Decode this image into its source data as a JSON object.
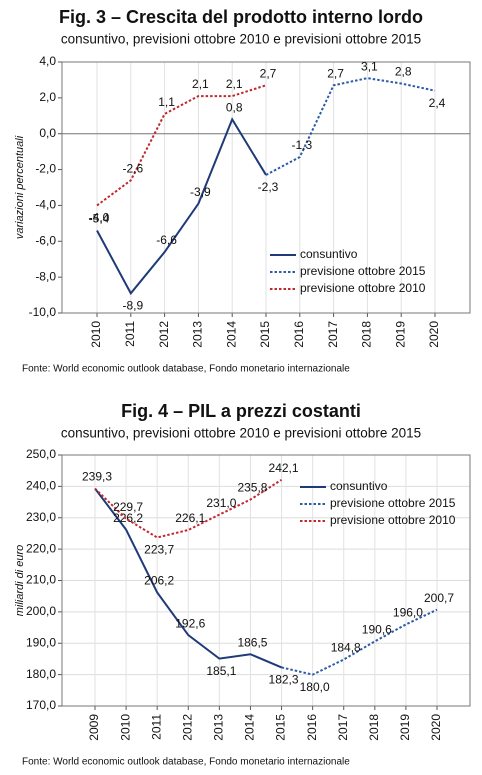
{
  "chart_data": [
    {
      "type": "line",
      "title": "Fig. 3 – Crescita del prodotto interno lordo",
      "subtitle": "consuntivo, previsioni ottobre 2010 e previsioni ottobre 2015",
      "y_label": "variazioni percentuali",
      "source": "Fonte: World economic outlook database, Fondo monetario internazionale",
      "categories": [
        "2010",
        "2011",
        "2012",
        "2013",
        "2014",
        "2015",
        "2016",
        "2017",
        "2018",
        "2019",
        "2020"
      ],
      "ylim": [
        -10,
        4
      ],
      "yticks": [
        {
          "value": -10,
          "label": "-10,0"
        },
        {
          "value": -8,
          "label": "-8,0"
        },
        {
          "value": -6,
          "label": "-6,0"
        },
        {
          "value": -4,
          "label": "-4,0"
        },
        {
          "value": -2,
          "label": "-2,0"
        },
        {
          "value": 0,
          "label": "0,0"
        },
        {
          "value": 2,
          "label": "2,0"
        },
        {
          "value": 4,
          "label": "4,0"
        }
      ],
      "grid": "x",
      "legend": "lower right",
      "series": [
        {
          "name": "consuntivo",
          "color": "#1f3a78",
          "line_style": "solid",
          "values": [
            -5.4,
            -8.9,
            -6.6,
            -3.9,
            0.8,
            -2.3,
            null,
            null,
            null,
            null,
            null
          ],
          "value_labels": [
            "-5,4",
            "-8,9",
            "-6,6",
            "-3,9",
            "0,8",
            "-2,3",
            null,
            null,
            null,
            null,
            null
          ]
        },
        {
          "name": "previsione ottobre 2015",
          "color": "#2b5aa8",
          "line_style": "dotted",
          "values": [
            null,
            null,
            null,
            null,
            null,
            -2.3,
            -1.3,
            2.7,
            3.1,
            2.8,
            2.4
          ],
          "value_labels": [
            null,
            null,
            null,
            null,
            null,
            null,
            "-1,3",
            "2,7",
            "3,1",
            "2,8",
            "2,4"
          ]
        },
        {
          "name": "previsione ottobre 2010",
          "color": "#c0282d",
          "line_style": "dotted",
          "values": [
            -4.0,
            -2.6,
            1.1,
            2.1,
            2.1,
            2.7,
            null,
            null,
            null,
            null,
            null
          ],
          "value_labels": [
            "-4,0",
            "-2,6",
            "1,1",
            "2,1",
            "2,1",
            "2,7",
            null,
            null,
            null,
            null,
            null
          ]
        }
      ]
    },
    {
      "type": "line",
      "title": "Fig. 4 – PIL a prezzi costanti",
      "subtitle": "consuntivo, previsioni ottobre 2010 e previsioni ottobre 2015",
      "y_label": "miliardi di euro",
      "source": "Fonte: World economic outlook database, Fondo monetario internazionale",
      "categories": [
        "2009",
        "2010",
        "2011",
        "2012",
        "2013",
        "2014",
        "2015",
        "2016",
        "2017",
        "2018",
        "2019",
        "2020"
      ],
      "ylim": [
        170,
        250
      ],
      "yticks": [
        {
          "value": 170,
          "label": "170,0"
        },
        {
          "value": 180,
          "label": "180,0"
        },
        {
          "value": 190,
          "label": "190,0"
        },
        {
          "value": 200,
          "label": "200,0"
        },
        {
          "value": 210,
          "label": "210,0"
        },
        {
          "value": 220,
          "label": "220,0"
        },
        {
          "value": 230,
          "label": "230,0"
        },
        {
          "value": 240,
          "label": "240,0"
        },
        {
          "value": 250,
          "label": "250,0"
        }
      ],
      "grid": "both",
      "legend": "upper right",
      "series": [
        {
          "name": "consuntivo",
          "color": "#1f3a78",
          "line_style": "solid",
          "values": [
            239.3,
            226.2,
            206.2,
            192.6,
            185.1,
            186.5,
            182.3,
            null,
            null,
            null,
            null,
            null
          ],
          "value_labels": [
            "239,3",
            "226,2",
            "206,2",
            "192,6",
            "185,1",
            "186,5",
            "182,3",
            null,
            null,
            null,
            null,
            null
          ]
        },
        {
          "name": "previsione ottobre 2015",
          "color": "#2b5aa8",
          "line_style": "dotted",
          "values": [
            null,
            null,
            null,
            null,
            null,
            null,
            182.3,
            180.0,
            184.8,
            190.6,
            196.0,
            200.7
          ],
          "value_labels": [
            null,
            null,
            null,
            null,
            null,
            null,
            null,
            "180,0",
            "184,8",
            "190,6",
            "196,0",
            "200,7"
          ]
        },
        {
          "name": "previsione ottobre 2010",
          "color": "#c0282d",
          "line_style": "dotted",
          "values": [
            239.3,
            229.7,
            223.7,
            226.1,
            231.0,
            235.8,
            242.1,
            null,
            null,
            null,
            null,
            null
          ],
          "value_labels": [
            null,
            "229,7",
            "223,7",
            "226,1",
            "231,0",
            "235,8",
            "242,1",
            null,
            null,
            null,
            null,
            null
          ]
        }
      ]
    }
  ]
}
